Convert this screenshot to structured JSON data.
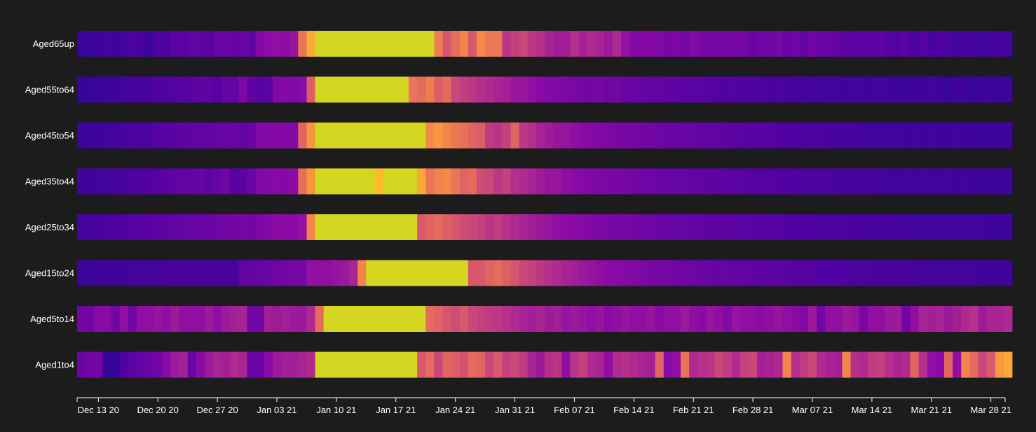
{
  "chart_data": {
    "type": "heatmap",
    "title": "",
    "xlabel": "",
    "ylabel": "",
    "x_start": "Dec 11 20",
    "x_end": "Mar 30 21",
    "x_ticks": [
      "Dec 13 20",
      "Dec 20 20",
      "Dec 27 20",
      "Jan 03 21",
      "Jan 10 21",
      "Jan 17 21",
      "Jan 24 21",
      "Jan 31 21",
      "Feb 07 21",
      "Feb 14 21",
      "Feb 21 21",
      "Feb 28 21",
      "Mar 07 21",
      "Mar 14 21",
      "Mar 21 21",
      "Mar 28 21"
    ],
    "rows": [
      "Aged65up",
      "Aged55to64",
      "Aged45to54",
      "Aged35to44",
      "Aged25to34",
      "Aged15to24",
      "Aged5to14",
      "Aged1to4"
    ],
    "colormap": [
      "#0d0887",
      "#5302a3",
      "#8b0aa5",
      "#b83289",
      "#db5c68",
      "#f48849",
      "#febd2a",
      "#d4d622"
    ],
    "value_range": [
      0,
      1
    ],
    "grid": false,
    "legend": "none",
    "values": [
      [
        0.09,
        0.1,
        0.1,
        0.11,
        0.1,
        0.11,
        0.13,
        0.12,
        0.1,
        0.13,
        0.13,
        0.16,
        0.16,
        0.18,
        0.17,
        0.16,
        0.19,
        0.2,
        0.18,
        0.2,
        0.17,
        0.26,
        0.29,
        0.3,
        0.29,
        0.32,
        0.65,
        0.8,
        1,
        1,
        1,
        1,
        1,
        1,
        1,
        1,
        1,
        1,
        1,
        1,
        1,
        1,
        0.68,
        0.55,
        0.63,
        0.7,
        0.56,
        0.72,
        0.66,
        0.66,
        0.44,
        0.48,
        0.5,
        0.45,
        0.42,
        0.38,
        0.35,
        0.36,
        0.42,
        0.37,
        0.4,
        0.38,
        0.34,
        0.4,
        0.31,
        0.27,
        0.27,
        0.27,
        0.26,
        0.24,
        0.25,
        0.23,
        0.26,
        0.24,
        0.23,
        0.23,
        0.23,
        0.24,
        0.23,
        0.2,
        0.22,
        0.21,
        0.23,
        0.2,
        0.21,
        0.19,
        0.22,
        0.2,
        0.2,
        0.18,
        0.17,
        0.16,
        0.17,
        0.16,
        0.17,
        0.15,
        0.14,
        0.16,
        0.13,
        0.15,
        0.12,
        0.14,
        0.13,
        0.11,
        0.12,
        0.12,
        0.11,
        0.11,
        0.12,
        0.11,
        0.12,
        0.12
      ],
      [
        0.08,
        0.09,
        0.09,
        0.1,
        0.1,
        0.11,
        0.12,
        0.12,
        0.12,
        0.14,
        0.13,
        0.15,
        0.15,
        0.16,
        0.17,
        0.17,
        0.15,
        0.19,
        0.18,
        0.25,
        0.17,
        0.15,
        0.16,
        0.26,
        0.27,
        0.26,
        0.28,
        0.58,
        1,
        1,
        1,
        1,
        1,
        1,
        1,
        1,
        1,
        1,
        1,
        0.65,
        0.62,
        0.68,
        0.58,
        0.62,
        0.5,
        0.47,
        0.45,
        0.42,
        0.4,
        0.38,
        0.36,
        0.33,
        0.33,
        0.3,
        0.28,
        0.27,
        0.26,
        0.25,
        0.24,
        0.23,
        0.22,
        0.23,
        0.21,
        0.22,
        0.2,
        0.2,
        0.19,
        0.18,
        0.18,
        0.17,
        0.17,
        0.16,
        0.16,
        0.16,
        0.15,
        0.14,
        0.14,
        0.15,
        0.13,
        0.14,
        0.13,
        0.12,
        0.13,
        0.12,
        0.12,
        0.11,
        0.12,
        0.11,
        0.11,
        0.11,
        0.1,
        0.11,
        0.1,
        0.1,
        0.11,
        0.1,
        0.1,
        0.1,
        0.1,
        0.1,
        0.11,
        0.1,
        0.09,
        0.1,
        0.1,
        0.09,
        0.1,
        0.1,
        0.09,
        0.1,
        0.1,
        0.1
      ],
      [
        0.09,
        0.1,
        0.1,
        0.11,
        0.11,
        0.12,
        0.13,
        0.13,
        0.13,
        0.15,
        0.15,
        0.16,
        0.17,
        0.17,
        0.18,
        0.18,
        0.19,
        0.19,
        0.2,
        0.18,
        0.2,
        0.26,
        0.26,
        0.27,
        0.27,
        0.27,
        0.6,
        0.75,
        1,
        1,
        1,
        1,
        1,
        1,
        1,
        1,
        1,
        1,
        1,
        1,
        1,
        0.72,
        0.75,
        0.7,
        0.66,
        0.64,
        0.6,
        0.58,
        0.46,
        0.44,
        0.48,
        0.6,
        0.45,
        0.42,
        0.38,
        0.35,
        0.33,
        0.32,
        0.3,
        0.28,
        0.27,
        0.26,
        0.25,
        0.24,
        0.24,
        0.23,
        0.22,
        0.22,
        0.21,
        0.2,
        0.2,
        0.19,
        0.19,
        0.18,
        0.18,
        0.17,
        0.17,
        0.16,
        0.16,
        0.15,
        0.15,
        0.15,
        0.14,
        0.14,
        0.14,
        0.13,
        0.13,
        0.13,
        0.12,
        0.12,
        0.12,
        0.12,
        0.11,
        0.11,
        0.11,
        0.11,
        0.11,
        0.1,
        0.11,
        0.1,
        0.11,
        0.1,
        0.1,
        0.11,
        0.1,
        0.1,
        0.1,
        0.1,
        0.1,
        0.1,
        0.1,
        0.1
      ],
      [
        0.1,
        0.1,
        0.11,
        0.11,
        0.12,
        0.12,
        0.13,
        0.14,
        0.14,
        0.15,
        0.16,
        0.17,
        0.18,
        0.18,
        0.19,
        0.17,
        0.19,
        0.21,
        0.15,
        0.16,
        0.2,
        0.26,
        0.27,
        0.28,
        0.27,
        0.29,
        0.63,
        0.75,
        1,
        1,
        1,
        1,
        1,
        1,
        1,
        0.85,
        1,
        1,
        1,
        1,
        0.8,
        0.65,
        0.7,
        0.72,
        0.65,
        0.6,
        0.62,
        0.52,
        0.5,
        0.45,
        0.48,
        0.42,
        0.4,
        0.38,
        0.35,
        0.33,
        0.32,
        0.3,
        0.28,
        0.27,
        0.26,
        0.25,
        0.24,
        0.24,
        0.23,
        0.22,
        0.21,
        0.21,
        0.2,
        0.2,
        0.19,
        0.19,
        0.18,
        0.18,
        0.17,
        0.17,
        0.16,
        0.16,
        0.16,
        0.15,
        0.15,
        0.15,
        0.14,
        0.14,
        0.14,
        0.13,
        0.13,
        0.13,
        0.13,
        0.12,
        0.12,
        0.12,
        0.12,
        0.12,
        0.11,
        0.11,
        0.11,
        0.11,
        0.11,
        0.11,
        0.11,
        0.11,
        0.11,
        0.1,
        0.11,
        0.1,
        0.1,
        0.1,
        0.1,
        0.1,
        0.1,
        0.1
      ],
      [
        0.11,
        0.12,
        0.12,
        0.13,
        0.13,
        0.14,
        0.15,
        0.15,
        0.16,
        0.17,
        0.17,
        0.18,
        0.19,
        0.19,
        0.2,
        0.2,
        0.21,
        0.22,
        0.22,
        0.23,
        0.22,
        0.25,
        0.26,
        0.29,
        0.28,
        0.28,
        0.31,
        0.7,
        1,
        1,
        1,
        1,
        1,
        1,
        1,
        1,
        1,
        1,
        1,
        1,
        0.56,
        0.6,
        0.62,
        0.58,
        0.55,
        0.52,
        0.5,
        0.48,
        0.44,
        0.46,
        0.42,
        0.4,
        0.38,
        0.36,
        0.34,
        0.32,
        0.3,
        0.29,
        0.28,
        0.27,
        0.26,
        0.25,
        0.24,
        0.23,
        0.23,
        0.22,
        0.21,
        0.21,
        0.2,
        0.2,
        0.19,
        0.19,
        0.18,
        0.18,
        0.17,
        0.17,
        0.17,
        0.16,
        0.16,
        0.16,
        0.15,
        0.15,
        0.15,
        0.14,
        0.14,
        0.14,
        0.14,
        0.13,
        0.13,
        0.13,
        0.13,
        0.12,
        0.12,
        0.12,
        0.12,
        0.12,
        0.12,
        0.11,
        0.11,
        0.11,
        0.11,
        0.11,
        0.11,
        0.11,
        0.11,
        0.11,
        0.11,
        0.1,
        0.1,
        0.1,
        0.1,
        0.1
      ],
      [
        0.09,
        0.09,
        0.1,
        0.1,
        0.1,
        0.1,
        0.11,
        0.11,
        0.11,
        0.11,
        0.12,
        0.12,
        0.12,
        0.12,
        0.12,
        0.12,
        0.12,
        0.12,
        0.12,
        0.18,
        0.19,
        0.19,
        0.2,
        0.21,
        0.22,
        0.23,
        0.23,
        0.31,
        0.3,
        0.3,
        0.32,
        0.34,
        0.38,
        0.7,
        1,
        1,
        1,
        1,
        1,
        1,
        1,
        1,
        1,
        1,
        1,
        1,
        0.55,
        0.56,
        0.6,
        0.62,
        0.58,
        0.55,
        0.5,
        0.48,
        0.45,
        0.42,
        0.4,
        0.38,
        0.36,
        0.34,
        0.32,
        0.3,
        0.29,
        0.28,
        0.27,
        0.26,
        0.25,
        0.24,
        0.23,
        0.23,
        0.22,
        0.21,
        0.21,
        0.2,
        0.2,
        0.19,
        0.19,
        0.18,
        0.18,
        0.17,
        0.17,
        0.16,
        0.16,
        0.16,
        0.15,
        0.15,
        0.15,
        0.14,
        0.14,
        0.14,
        0.13,
        0.13,
        0.13,
        0.13,
        0.12,
        0.12,
        0.12,
        0.12,
        0.12,
        0.11,
        0.11,
        0.11,
        0.11,
        0.11,
        0.11,
        0.11,
        0.1,
        0.1,
        0.1,
        0.1,
        0.1,
        0.1
      ],
      [
        0.22,
        0.22,
        0.28,
        0.28,
        0.22,
        0.3,
        0.22,
        0.3,
        0.3,
        0.32,
        0.3,
        0.34,
        0.3,
        0.3,
        0.3,
        0.34,
        0.3,
        0.34,
        0.36,
        0.38,
        0.22,
        0.22,
        0.36,
        0.34,
        0.36,
        0.34,
        0.34,
        0.4,
        0.62,
        1,
        1,
        1,
        1,
        1,
        1,
        1,
        1,
        1,
        1,
        1,
        1,
        0.62,
        0.6,
        0.55,
        0.52,
        0.56,
        0.5,
        0.48,
        0.46,
        0.45,
        0.42,
        0.4,
        0.38,
        0.36,
        0.38,
        0.34,
        0.36,
        0.32,
        0.34,
        0.32,
        0.3,
        0.32,
        0.28,
        0.3,
        0.32,
        0.3,
        0.3,
        0.32,
        0.28,
        0.3,
        0.3,
        0.34,
        0.3,
        0.28,
        0.32,
        0.3,
        0.26,
        0.32,
        0.3,
        0.3,
        0.28,
        0.3,
        0.32,
        0.3,
        0.28,
        0.26,
        0.34,
        0.22,
        0.3,
        0.3,
        0.34,
        0.32,
        0.24,
        0.3,
        0.3,
        0.34,
        0.34,
        0.22,
        0.3,
        0.38,
        0.36,
        0.38,
        0.34,
        0.36,
        0.4,
        0.42,
        0.34,
        0.38,
        0.38,
        0.4,
        0.42,
        0.3
      ],
      [
        0.2,
        0.22,
        0.22,
        0.08,
        0.08,
        0.14,
        0.16,
        0.18,
        0.2,
        0.22,
        0.28,
        0.34,
        0.36,
        0.2,
        0.28,
        0.34,
        0.38,
        0.36,
        0.4,
        0.38,
        0.2,
        0.2,
        0.28,
        0.34,
        0.36,
        0.36,
        0.38,
        0.4,
        1,
        1,
        1,
        1,
        1,
        1,
        1,
        1,
        1,
        1,
        1,
        1,
        0.56,
        0.62,
        0.5,
        0.6,
        0.58,
        0.54,
        0.62,
        0.6,
        0.5,
        0.56,
        0.48,
        0.5,
        0.46,
        0.38,
        0.34,
        0.42,
        0.44,
        0.3,
        0.44,
        0.48,
        0.4,
        0.38,
        0.3,
        0.4,
        0.42,
        0.4,
        0.38,
        0.36,
        0.6,
        0.28,
        0.3,
        0.65,
        0.4,
        0.42,
        0.44,
        0.5,
        0.46,
        0.4,
        0.48,
        0.5,
        0.36,
        0.38,
        0.4,
        0.7,
        0.42,
        0.46,
        0.5,
        0.4,
        0.38,
        0.36,
        0.7,
        0.42,
        0.4,
        0.46,
        0.48,
        0.42,
        0.38,
        0.4,
        0.6,
        0.42,
        0.3,
        0.28,
        0.6,
        0.3,
        0.7,
        0.62,
        0.5,
        0.56,
        0.76,
        0.8,
        0.46,
        0.6,
        0.52,
        0.55,
        0.72,
        0.3
      ]
    ]
  }
}
